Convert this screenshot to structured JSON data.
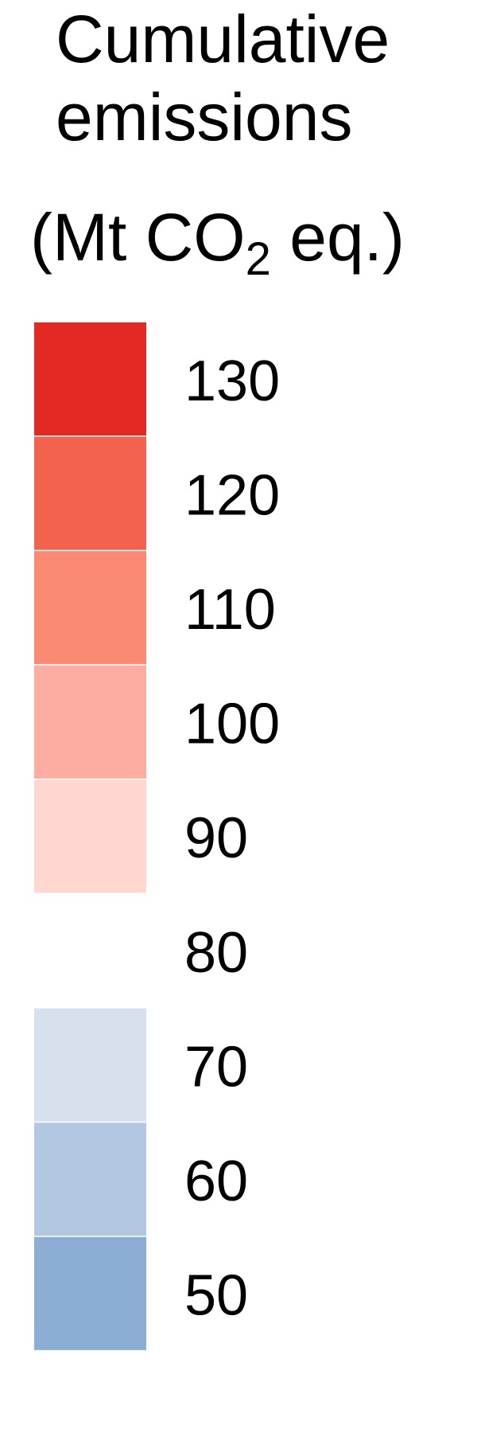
{
  "chart_data": {
    "type": "legend",
    "title_lines": [
      "Cumulative",
      "emissions"
    ],
    "units": {
      "prefix": "(Mt CO",
      "subscript": "2",
      "suffix": " eq.)"
    },
    "levels": [
      {
        "value": 130,
        "label": "130",
        "color": "#e32a22"
      },
      {
        "value": 120,
        "label": "120",
        "color": "#f2624d"
      },
      {
        "value": 110,
        "label": "110",
        "color": "#fb8a74"
      },
      {
        "value": 100,
        "label": "100",
        "color": "#fcaca0"
      },
      {
        "value": 90,
        "label": "90",
        "color": "#fed8d0"
      },
      {
        "value": 80,
        "label": "80",
        "color": "#ffffff"
      },
      {
        "value": 70,
        "label": "70",
        "color": "#d7e1ee"
      },
      {
        "value": 60,
        "label": "60",
        "color": "#b2c7e1"
      },
      {
        "value": 50,
        "label": "50",
        "color": "#8caed4"
      }
    ]
  }
}
